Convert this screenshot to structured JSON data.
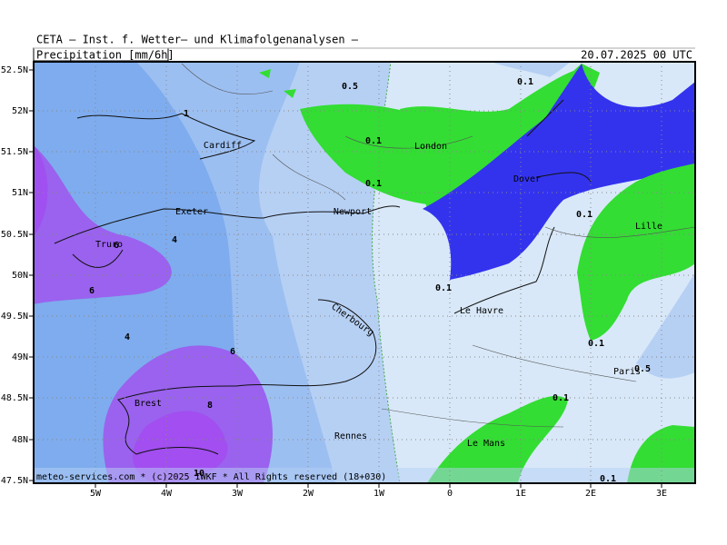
{
  "header": {
    "institute": "CETA – Inst. f. Wetter– und Klimafolgenanalysen –",
    "variable": "Precipitation [mm/6h]",
    "valid_time": "20.07.2025 00 UTC"
  },
  "footer": "meteo-services.com * (c)2025 IWKF * All Rights reserved (18+030)",
  "lat_labels": [
    "52.5N",
    "52N",
    "51.5N",
    "51N",
    "50.5N",
    "50N",
    "49.5N",
    "49N",
    "48.5N",
    "48N",
    "47.5N"
  ],
  "lon_labels": [
    "5W",
    "4W",
    "3W",
    "2W",
    "1W",
    "0",
    "1E",
    "2E",
    "3E"
  ],
  "cities": [
    "Cardiff",
    "London",
    "Dover",
    "Exeter",
    "Newport",
    "Truro",
    "Lille",
    "Cherbourg",
    "Le Havre",
    "Paris",
    "Brest",
    "Rennes",
    "Le Mans"
  ],
  "contour_labels": [
    "0.5",
    "0.1",
    "1",
    "0.1",
    "0.1",
    "0.1",
    "4",
    "6",
    "0.1",
    "6",
    "4",
    "6",
    "0.1",
    "0.5",
    "0.1",
    "8",
    "10",
    "0.1"
  ]
}
